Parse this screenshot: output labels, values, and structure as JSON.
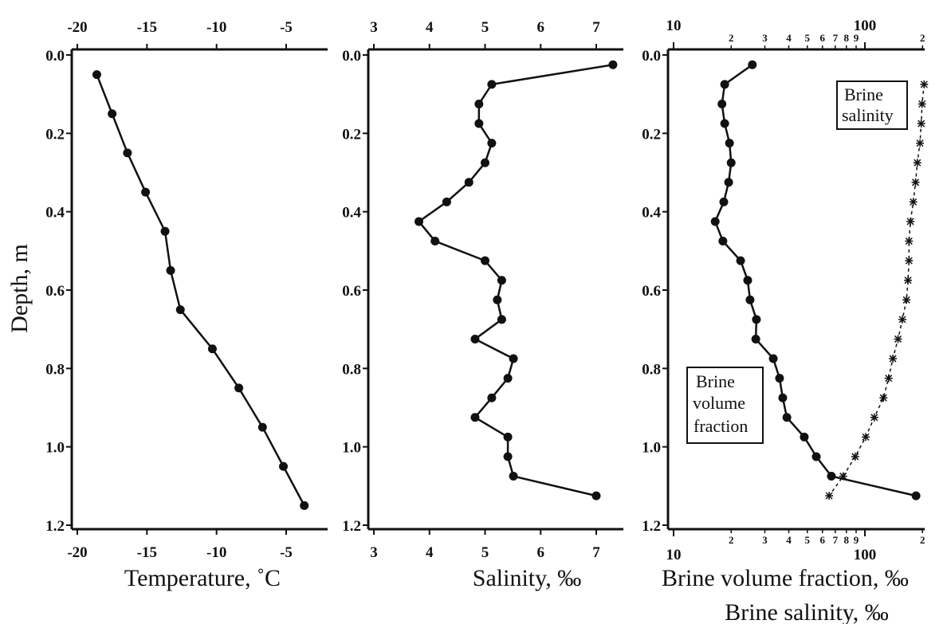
{
  "y_axis": {
    "label": "Depth, m",
    "range": [
      0,
      1.2
    ],
    "inverted": true,
    "ticks": [
      0.0,
      0.2,
      0.4,
      0.6,
      0.8,
      1.0,
      1.2
    ],
    "tick_labels": [
      "0.0",
      "0.2",
      "0.4",
      "0.6",
      "0.8",
      "1.0",
      "1.2"
    ]
  },
  "chart_data": [
    {
      "type": "line",
      "xlabel": "Temperature, ˚C",
      "xlim": [
        -21,
        -2.5
      ],
      "xticks": [
        -20,
        -15,
        -10,
        -5
      ],
      "xtick_labels": [
        "-20",
        "-15",
        "-10",
        "-5"
      ],
      "xscale": "linear",
      "ylabel": "Depth, m",
      "series": [
        {
          "marker": "circle",
          "line": "solid",
          "color": "#111111",
          "x": [
            -18.6,
            -17.5,
            -16.4,
            -15.1,
            -13.7,
            -13.3,
            -12.6,
            -10.3,
            -8.4,
            -6.7,
            -5.2,
            -3.7
          ],
          "y": [
            0.05,
            0.15,
            0.25,
            0.35,
            0.45,
            0.55,
            0.65,
            0.75,
            0.85,
            0.95,
            1.05,
            1.15
          ]
        }
      ]
    },
    {
      "type": "line",
      "xlabel": "Salinity, ‰",
      "xlim": [
        2.9,
        7.5
      ],
      "xticks": [
        3,
        4,
        5,
        6,
        7
      ],
      "xtick_labels": [
        "3",
        "4",
        "5",
        "6",
        "7"
      ],
      "xscale": "linear",
      "series": [
        {
          "marker": "circle",
          "line": "solid",
          "color": "#111111",
          "x": [
            7.3,
            5.12,
            4.89,
            4.89,
            5.12,
            5.0,
            4.71,
            4.31,
            3.81,
            4.1,
            5.0,
            5.3,
            5.22,
            5.3,
            4.82,
            5.51,
            5.41,
            5.12,
            4.82,
            5.41,
            5.41,
            5.51,
            7.0
          ],
          "y": [
            0.025,
            0.075,
            0.125,
            0.175,
            0.225,
            0.275,
            0.325,
            0.375,
            0.425,
            0.475,
            0.525,
            0.575,
            0.625,
            0.675,
            0.725,
            0.775,
            0.825,
            0.875,
            0.925,
            0.975,
            1.025,
            1.075,
            1.125
          ]
        }
      ]
    },
    {
      "type": "line",
      "xlabel": "Brine volume fraction, ‰",
      "xlabel2": "Brine salinity, ‰",
      "xlim": [
        9.5,
        205
      ],
      "xscale": "log",
      "xticks_major": [
        10,
        100
      ],
      "xtick_major_labels": [
        "10",
        "100"
      ],
      "xticks_minor": [
        20,
        30,
        40,
        50,
        60,
        70,
        80,
        90,
        200
      ],
      "xtick_minor_labels": [
        "2",
        "3",
        "4",
        "5",
        "6",
        "7",
        "8",
        "9",
        "2"
      ],
      "series": [
        {
          "name": "Brine volume fraction",
          "marker": "circle",
          "line": "solid",
          "color": "#111111",
          "x": [
            25.8,
            18.5,
            17.9,
            18.5,
            19.6,
            20.0,
            19.4,
            18.3,
            16.5,
            18.1,
            22.4,
            24.4,
            25.1,
            27.1,
            26.9,
            33.2,
            35.8,
            37.2,
            39.1,
            48.2,
            55.7,
            66.8,
            185
          ],
          "y": [
            0.025,
            0.075,
            0.125,
            0.175,
            0.225,
            0.275,
            0.325,
            0.375,
            0.425,
            0.475,
            0.525,
            0.575,
            0.625,
            0.675,
            0.725,
            0.775,
            0.825,
            0.875,
            0.925,
            0.975,
            1.025,
            1.075,
            1.125
          ]
        },
        {
          "name": "Brine salinity",
          "marker": "star",
          "line": "dashed",
          "color": "#111111",
          "x": [
            204,
            199,
            197,
            194,
            188,
            184,
            179,
            173,
            170,
            170,
            168,
            165,
            157,
            149,
            140,
            133,
            125,
            112,
            101,
            89,
            77,
            65
          ],
          "y": [
            0.075,
            0.125,
            0.175,
            0.225,
            0.275,
            0.325,
            0.375,
            0.425,
            0.475,
            0.525,
            0.575,
            0.625,
            0.675,
            0.725,
            0.775,
            0.825,
            0.875,
            0.925,
            0.975,
            1.025,
            1.075,
            1.125
          ]
        }
      ],
      "legend": {
        "brine_salinity": [
          "Brine",
          "salinity"
        ],
        "brine_volume": [
          "Brine",
          "volume",
          "fraction"
        ]
      }
    }
  ]
}
